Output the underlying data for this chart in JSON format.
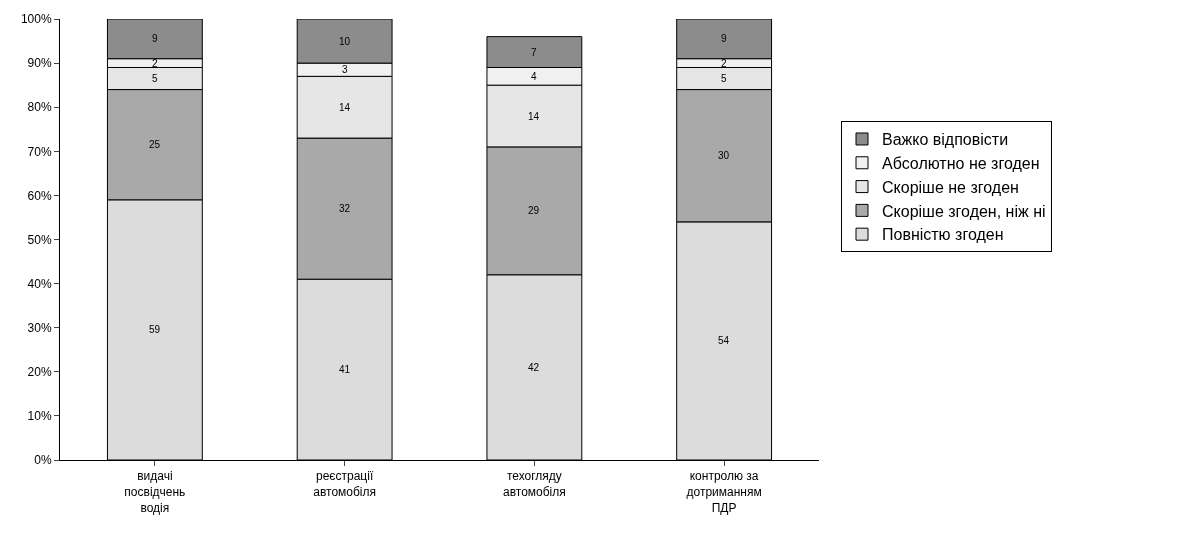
{
  "chart_data": {
    "type": "bar",
    "stacked": true,
    "categories": [
      "видачі посвідчень водія",
      "реєстрації автомобіля",
      "техогляду автомобіля",
      "контролю за дотриманням ПДР"
    ],
    "series": [
      {
        "name": "Повністю згоден",
        "color": "#dcdcdc",
        "values": [
          59,
          41,
          42,
          54
        ],
        "value_labels": [
          "59",
          "41",
          "42",
          "54"
        ]
      },
      {
        "name": "Скоріше згоден, ніж ні",
        "color": "#a9a9a9",
        "values": [
          25,
          32,
          29,
          30
        ],
        "value_labels": [
          "25",
          "32",
          "29",
          "30"
        ]
      },
      {
        "name": "Скоріше не згоден",
        "color": "#e6e6e6",
        "values": [
          5,
          14,
          14,
          5
        ],
        "value_labels": [
          "5",
          "14",
          "14",
          "5"
        ]
      },
      {
        "name": "Абсолютно не згоден",
        "color": "#f0f0f0",
        "values": [
          2,
          3,
          4,
          2
        ],
        "value_labels": [
          "2",
          "3",
          "4",
          "2"
        ]
      },
      {
        "name": "Важко відповісти",
        "color": "#8c8c8c",
        "values": [
          9,
          10,
          7,
          9
        ],
        "value_labels": [
          "9",
          "10",
          "7",
          "9"
        ]
      }
    ],
    "ylim": [
      0,
      100
    ],
    "yticks": [
      {
        "value": 0,
        "label": "0%"
      },
      {
        "value": 10,
        "label": "10%"
      },
      {
        "value": 20,
        "label": "20%"
      },
      {
        "value": 30,
        "label": "30%"
      },
      {
        "value": 40,
        "label": "40%"
      },
      {
        "value": 50,
        "label": "50%"
      },
      {
        "value": 60,
        "label": "60%"
      },
      {
        "value": 70,
        "label": "70%"
      },
      {
        "value": 80,
        "label": "80%"
      },
      {
        "value": 90,
        "label": "90%"
      },
      {
        "value": 100,
        "label": "100%"
      }
    ],
    "legend": "right"
  }
}
